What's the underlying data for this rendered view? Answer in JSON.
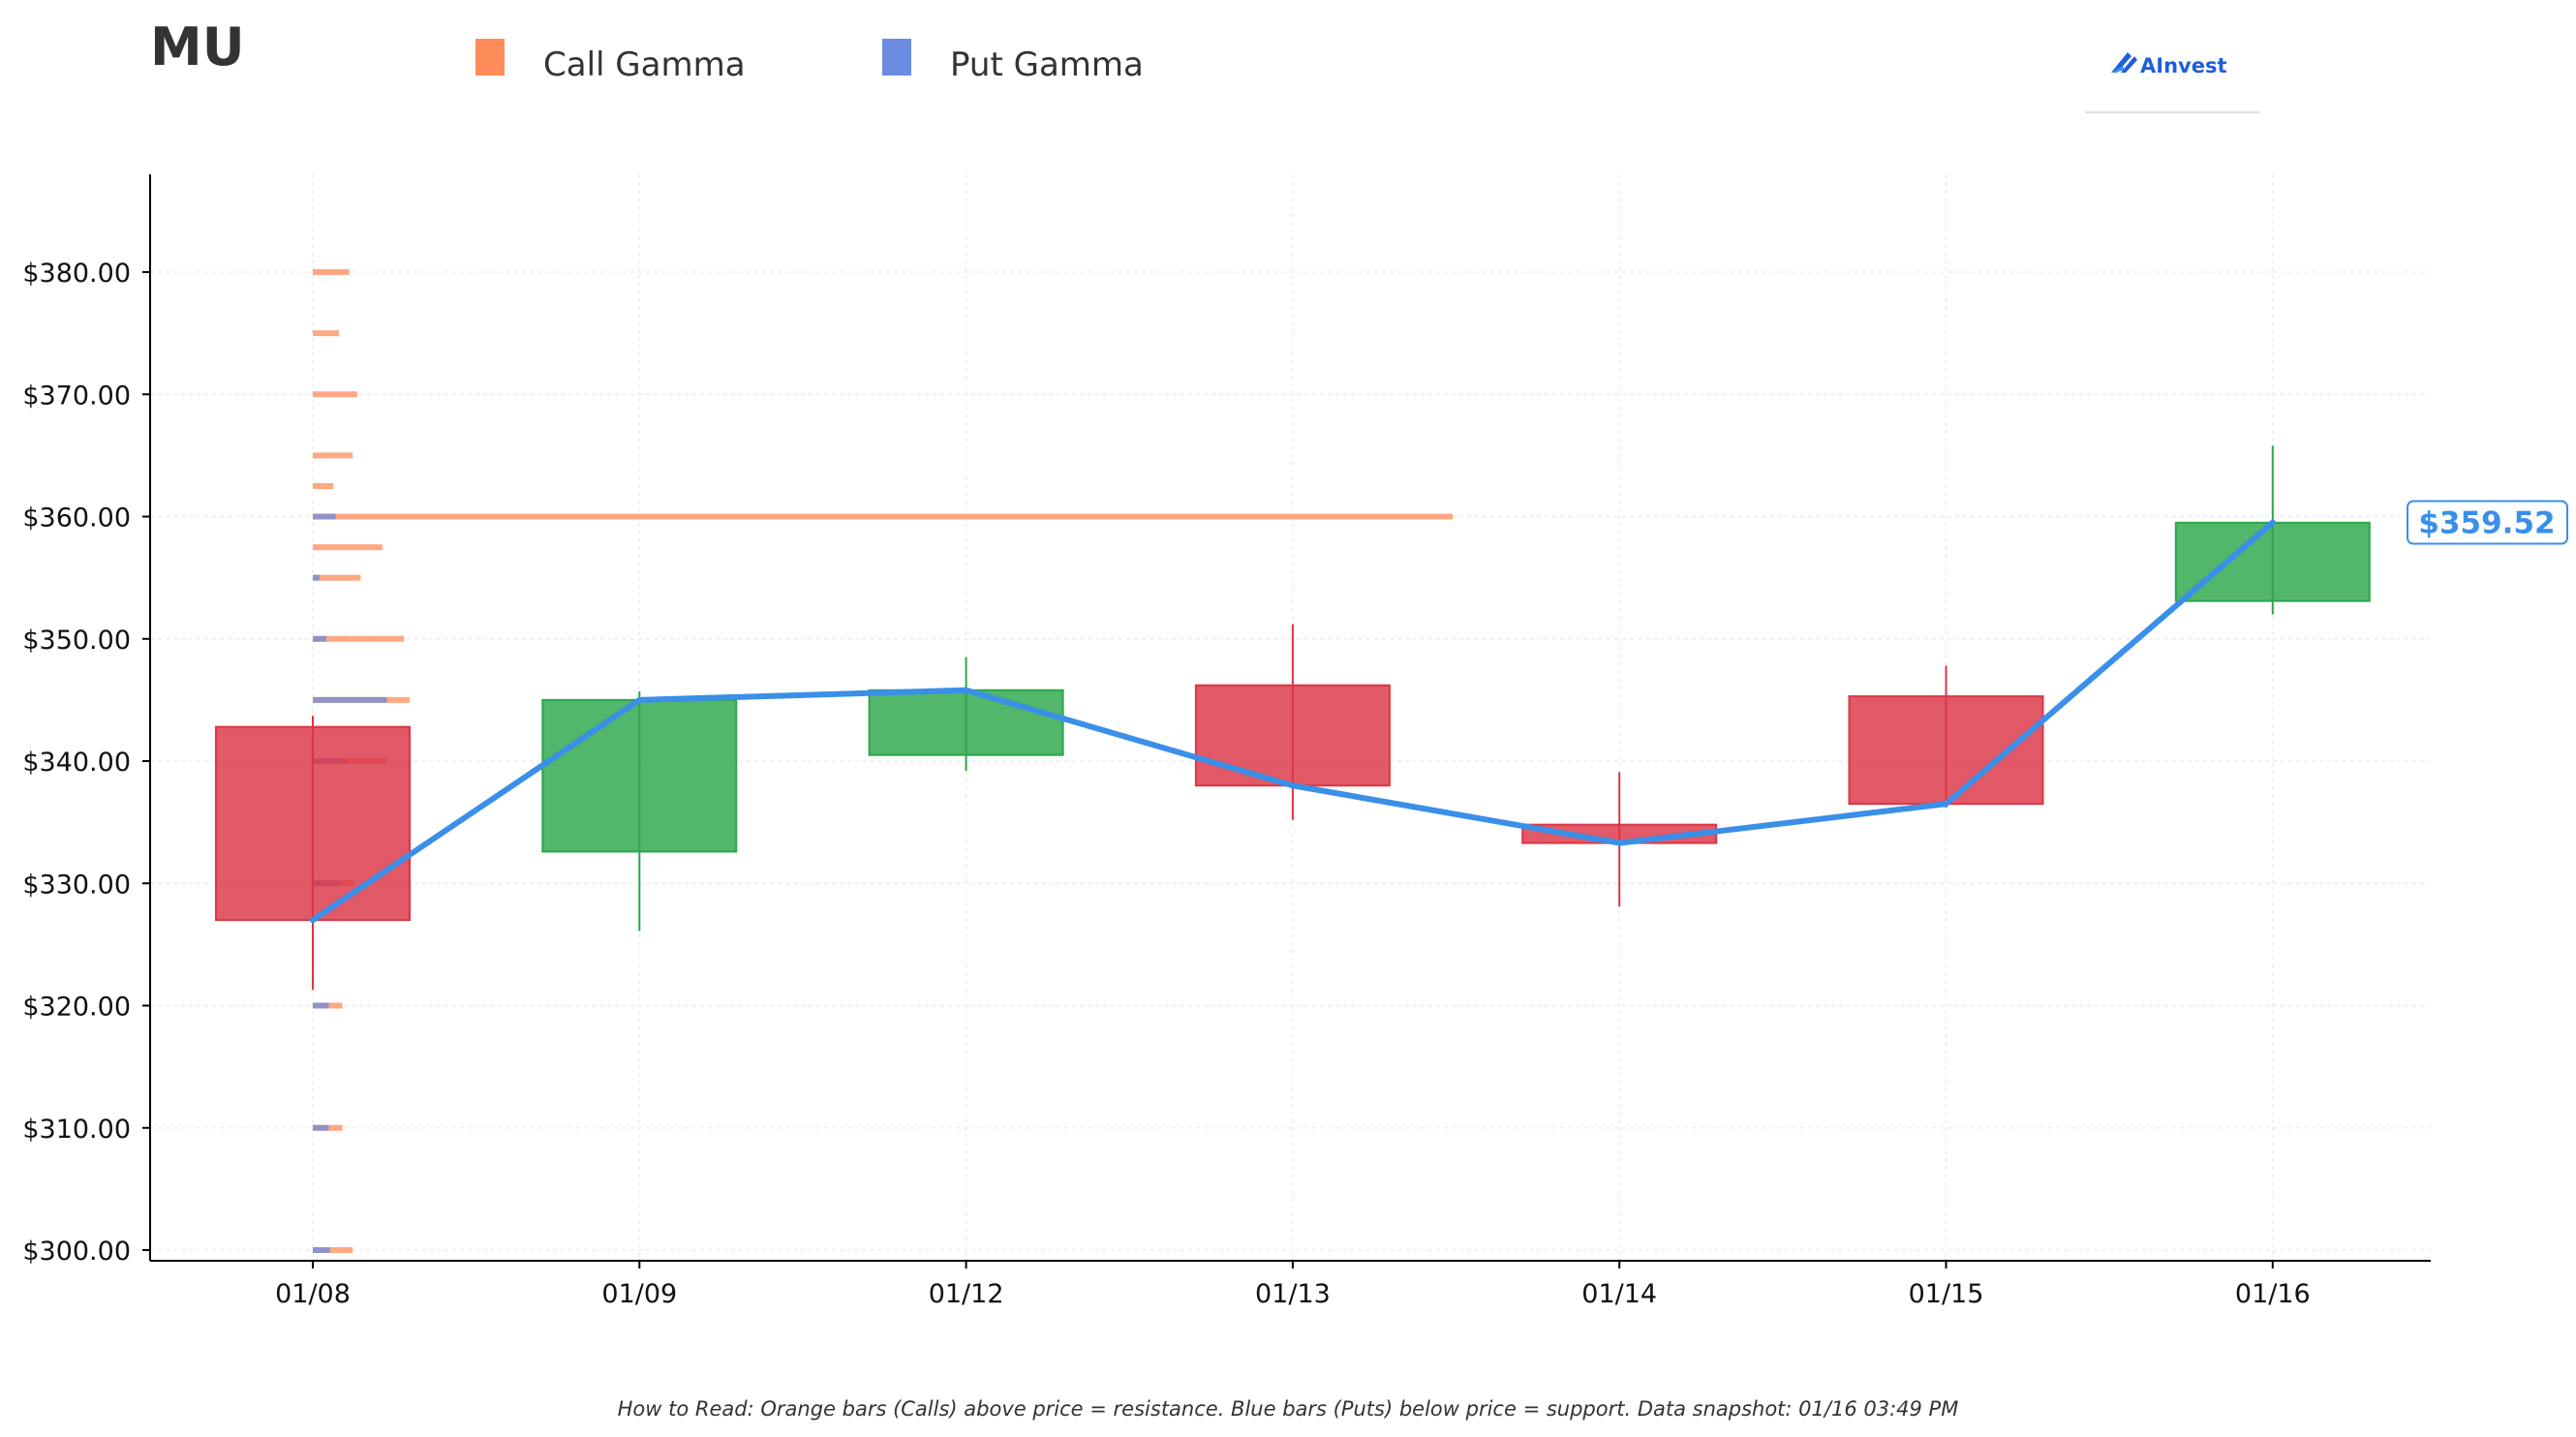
{
  "chart_data": {
    "type": "candlestick",
    "title": "MU",
    "legend": [
      {
        "name": "Call Gamma",
        "color": "#ff8c5a"
      },
      {
        "name": "Put Gamma",
        "color": "#6b8be0"
      }
    ],
    "legend_placement": "top",
    "brand": "AInvest",
    "categories": [
      "01/08",
      "01/09",
      "01/12",
      "01/13",
      "01/14",
      "01/15",
      "01/16"
    ],
    "candles": [
      {
        "date": "01/08",
        "open": 342.8,
        "high": 343.7,
        "low": 321.3,
        "close": 327.0
      },
      {
        "date": "01/09",
        "open": 332.6,
        "high": 345.7,
        "low": 326.1,
        "close": 345.0
      },
      {
        "date": "01/12",
        "open": 340.5,
        "high": 348.5,
        "low": 339.2,
        "close": 345.8
      },
      {
        "date": "01/13",
        "open": 346.2,
        "high": 351.2,
        "low": 335.2,
        "close": 338.0
      },
      {
        "date": "01/14",
        "open": 334.8,
        "high": 339.1,
        "low": 328.1,
        "close": 333.3
      },
      {
        "date": "01/15",
        "open": 345.3,
        "high": 347.8,
        "low": 336.2,
        "close": 336.5
      },
      {
        "date": "01/16",
        "open": 353.1,
        "high": 365.8,
        "low": 352.0,
        "close": 359.5
      }
    ],
    "close_line": [
      327.0,
      345.0,
      345.8,
      338.0,
      333.3,
      336.5,
      359.52
    ],
    "call_gamma": [
      {
        "strike": 380,
        "value": 3.2
      },
      {
        "strike": 375,
        "value": 2.3
      },
      {
        "strike": 370,
        "value": 3.9
      },
      {
        "strike": 365,
        "value": 3.5
      },
      {
        "strike": 362.5,
        "value": 1.8
      },
      {
        "strike": 360,
        "value": 100
      },
      {
        "strike": 357.5,
        "value": 6.1
      },
      {
        "strike": 355,
        "value": 4.2
      },
      {
        "strike": 350,
        "value": 8.0
      },
      {
        "strike": 345,
        "value": 8.5
      },
      {
        "strike": 340,
        "value": 6.5
      },
      {
        "strike": 330,
        "value": 3.6
      },
      {
        "strike": 320,
        "value": 2.6
      },
      {
        "strike": 310,
        "value": 2.6
      },
      {
        "strike": 300,
        "value": 3.5
      }
    ],
    "put_gamma": [
      {
        "strike": 360,
        "value": 2.0
      },
      {
        "strike": 355,
        "value": 0.6
      },
      {
        "strike": 350,
        "value": 1.2
      },
      {
        "strike": 345,
        "value": 6.5
      },
      {
        "strike": 340,
        "value": 3.0
      },
      {
        "strike": 330,
        "value": 2.4
      },
      {
        "strike": 320,
        "value": 1.4
      },
      {
        "strike": 310,
        "value": 1.4
      },
      {
        "strike": 300,
        "value": 1.5
      }
    ],
    "y_ticks": [
      300,
      310,
      320,
      330,
      340,
      350,
      360,
      370,
      380
    ],
    "y_tick_labels": [
      "$300.00",
      "$310.00",
      "$320.00",
      "$330.00",
      "$340.00",
      "$350.00",
      "$360.00",
      "$370.00",
      "$380.00"
    ],
    "ylim": [
      299,
      388
    ],
    "last_price": 359.52,
    "last_price_label": "$359.52",
    "grid": true,
    "colors": {
      "up": "#2ca64a",
      "down": "#dc3545",
      "close_line": "#3a8fe8",
      "call": "#ff8c5a",
      "put": "#6b8be0"
    },
    "footnote": "How to Read: Orange bars (Calls) above price = resistance. Blue bars (Puts) below price = support. Data snapshot: 01/16 03:49 PM"
  }
}
